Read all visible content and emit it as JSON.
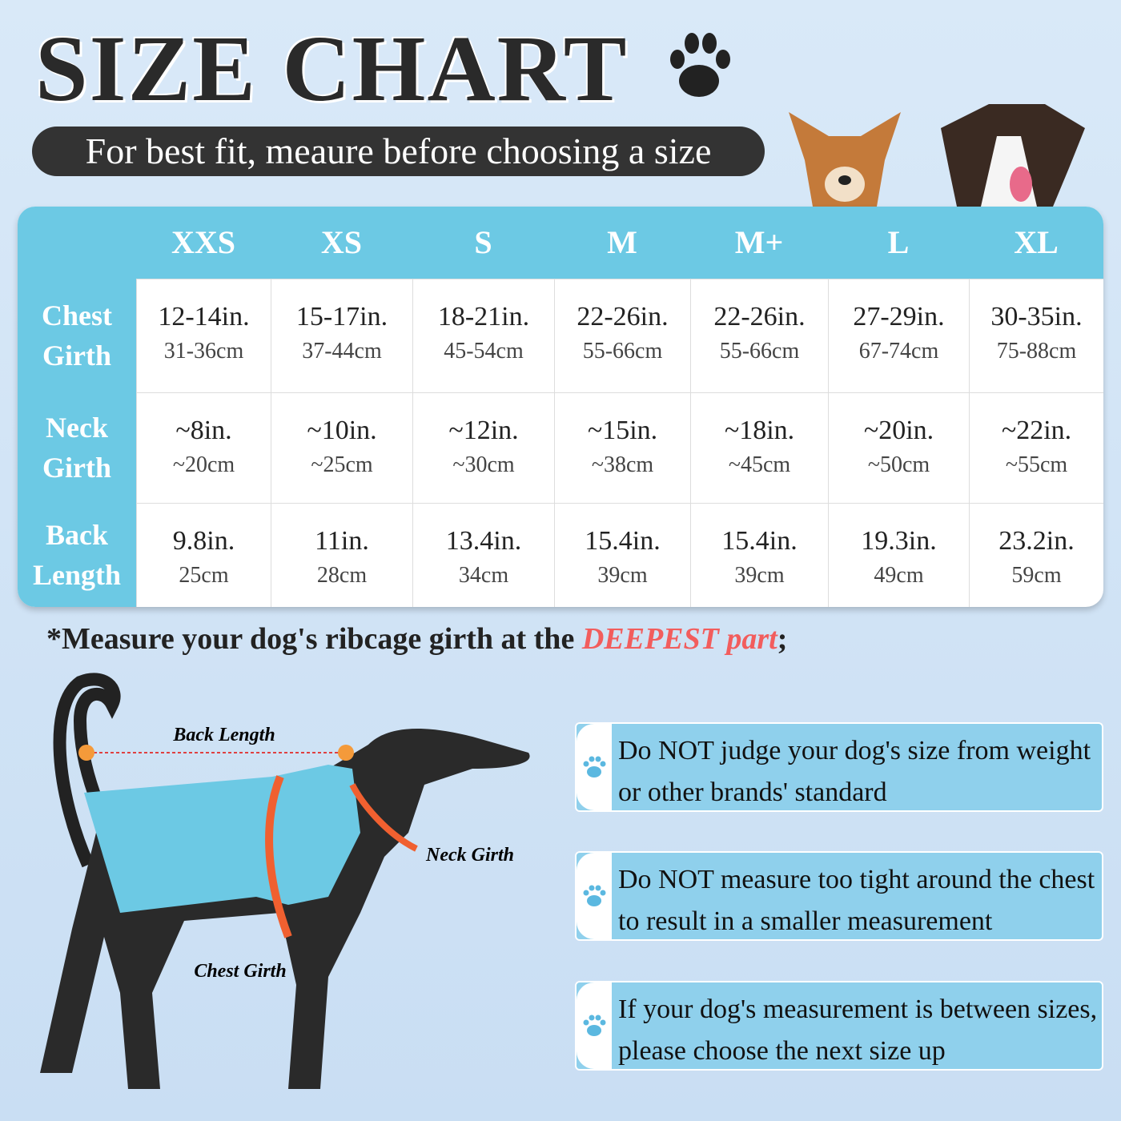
{
  "header": {
    "title": "SIZE CHART",
    "subtitle": "For best fit, meaure before choosing a size"
  },
  "table": {
    "columns": [
      "XXS",
      "XS",
      "S",
      "M",
      "M+",
      "L",
      "XL"
    ],
    "rows": [
      {
        "label": "Chest Girth",
        "cells": [
          [
            "12-14in.",
            "31-36cm"
          ],
          [
            "15-17in.",
            "37-44cm"
          ],
          [
            "18-21in.",
            "45-54cm"
          ],
          [
            "22-26in.",
            "55-66cm"
          ],
          [
            "22-26in.",
            "55-66cm"
          ],
          [
            "27-29in.",
            "67-74cm"
          ],
          [
            "30-35in.",
            "75-88cm"
          ]
        ]
      },
      {
        "label": "Neck Girth",
        "cells": [
          [
            "~8in.",
            "~20cm"
          ],
          [
            "~10in.",
            "~25cm"
          ],
          [
            "~12in.",
            "~30cm"
          ],
          [
            "~15in.",
            "~38cm"
          ],
          [
            "~18in.",
            "~45cm"
          ],
          [
            "~20in.",
            "~50cm"
          ],
          [
            "~22in.",
            "~55cm"
          ]
        ]
      },
      {
        "label": "Back Length",
        "cells": [
          [
            "9.8in.",
            "25cm"
          ],
          [
            "11in.",
            "28cm"
          ],
          [
            "13.4in.",
            "34cm"
          ],
          [
            "15.4in.",
            "39cm"
          ],
          [
            "15.4in.",
            "39cm"
          ],
          [
            "19.3in.",
            "49cm"
          ],
          [
            "23.2in.",
            "59cm"
          ]
        ]
      }
    ]
  },
  "note": {
    "text": "*Measure your dog's ribcage girth at the ",
    "emphasis": "DEEPEST part",
    "end": ";"
  },
  "diagram": {
    "back_length": "Back Length",
    "neck_girth": "Neck Girth",
    "chest_girth": "Chest Girth"
  },
  "tips": [
    "Do NOT judge your dog's size from weight or other brands' standard",
    "Do NOT measure too tight around the chest to result in a smaller measurement",
    "If your dog's measurement is between sizes, please choose the next size up"
  ]
}
